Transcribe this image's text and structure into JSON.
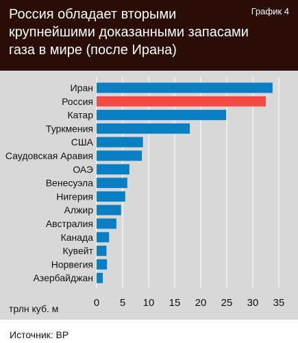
{
  "header": {
    "title_lines": [
      "Россия обладает вторыми",
      "крупнейшими доказанными запасами",
      "газа в мире (после Ирана)"
    ],
    "figure_label": "График 4"
  },
  "footer": {
    "source": "Источник: BP"
  },
  "colors": {
    "bar": "#0b7fc4",
    "highlight": "#f34b45",
    "header_bg": "#2a0d07",
    "panel_bg": "#d8d8d9"
  },
  "chart_data": {
    "type": "bar",
    "orientation": "horizontal",
    "title": "Россия обладает вторыми крупнейшими доказанными запасами газа в мире (после Ирана)",
    "xlabel": "трлн куб. м",
    "ylabel": "",
    "categories": [
      "Иран",
      "Россия",
      "Катар",
      "Туркмения",
      "США",
      "Саудовская Аравия",
      "ОАЭ",
      "Венесуэла",
      "Нигерия",
      "Алжир",
      "Австралия",
      "Канада",
      "Кувейт",
      "Норвегия",
      "Азербайджан"
    ],
    "values": [
      33.8,
      32.5,
      24.9,
      17.9,
      8.9,
      8.7,
      6.3,
      5.9,
      5.5,
      4.7,
      3.8,
      2.4,
      1.9,
      2.0,
      1.2
    ],
    "highlight_category": "Россия",
    "xlim": [
      0,
      35
    ],
    "xticks": [
      0,
      5,
      10,
      15,
      20,
      25,
      30,
      35
    ],
    "grid": true
  }
}
